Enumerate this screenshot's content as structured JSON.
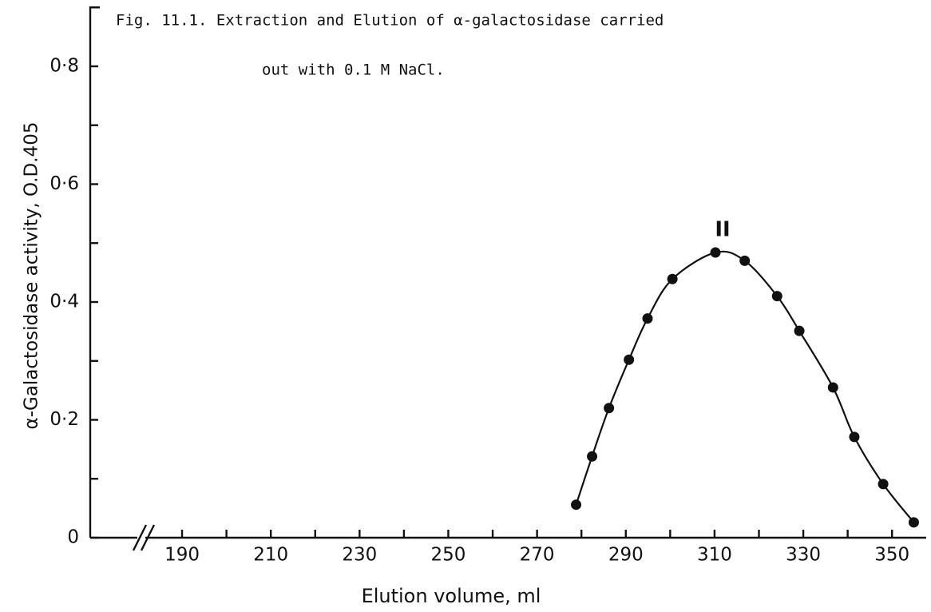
{
  "chart_data": {
    "type": "scatter",
    "title": [
      "Fig. 11.1.  Extraction and Elution of α-galactosidase carried",
      "out with 0.1 M NaCl."
    ],
    "xlabel": "Elution  volume, ml",
    "ylabel": "α-Galactosidase activity, O.D.405",
    "annotation": "II",
    "x": [
      278.8,
      282.4,
      286.2,
      290.7,
      294.9,
      300.5,
      310.2,
      316.8,
      324.1,
      329.1,
      336.7,
      341.5,
      348.0,
      354.9
    ],
    "series": [
      {
        "name": "α-Galactosidase activity",
        "color": "#111111",
        "values": [
          0.056,
          0.138,
          0.22,
          0.302,
          0.372,
          0.439,
          0.484,
          0.47,
          0.41,
          0.351,
          0.255,
          0.171,
          0.091,
          0.026
        ]
      }
    ],
    "xlim": [
      169.3,
      357.7
    ],
    "ylim": [
      0,
      0.9
    ],
    "xticks": [
      190,
      210,
      230,
      250,
      270,
      290,
      310,
      330,
      350
    ],
    "xminor_ticks": [
      200,
      220,
      240,
      260,
      280,
      300,
      320,
      340
    ],
    "yticks": [
      0,
      {
        "value": 0.2,
        "label": "0·2"
      },
      {
        "value": 0.4,
        "label": "0·4"
      },
      {
        "value": 0.6,
        "label": "0·6"
      },
      {
        "value": 0.8,
        "label": "0·8"
      }
    ],
    "yminor_ticks": [
      0.1,
      0.3,
      0.5,
      0.7
    ],
    "axis_break": true
  }
}
